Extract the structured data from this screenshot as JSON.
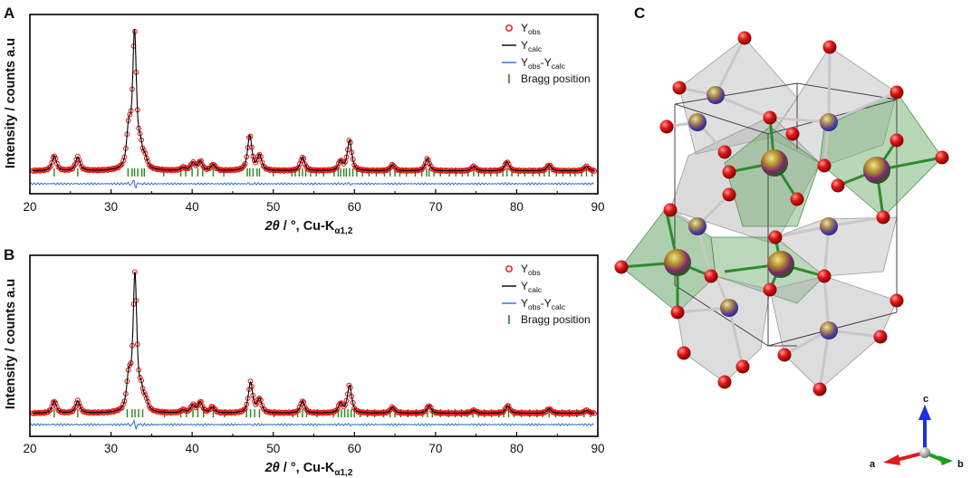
{
  "figure": {
    "panel_c_label": "C",
    "axes_triad": {
      "up": "c",
      "left": "a",
      "right": "b"
    }
  },
  "chart_data": [
    {
      "panel": "A",
      "type": "line",
      "title": "",
      "xlabel_symbol": "2θ",
      "xlabel_rest": " / °, Cu-K",
      "xlabel_sub": "α1,2",
      "ylabel": "Intensity / counts a.u",
      "xlim": [
        20,
        90
      ],
      "ylim": [
        -0.08,
        1.1
      ],
      "xticks": [
        20,
        30,
        40,
        50,
        60,
        70,
        80,
        90
      ],
      "yticks_labeled": false,
      "legend": [
        {
          "key": "obs",
          "main": "Y",
          "sub": "obs",
          "style": "open red circles"
        },
        {
          "key": "calc",
          "main": "Y",
          "sub": "calc",
          "style": "black line"
        },
        {
          "key": "diff",
          "main": "Y",
          "sub": "obs",
          "mid": "-Y",
          "sub2": "calc",
          "style": "blue line"
        },
        {
          "key": "bragg",
          "main": "Bragg position",
          "style": "green ticks"
        }
      ],
      "background": 0.07,
      "peaks": [
        {
          "x": 23.0,
          "h": 0.1
        },
        {
          "x": 25.9,
          "h": 0.09
        },
        {
          "x": 32.2,
          "h": 0.26
        },
        {
          "x": 32.9,
          "h": 0.88
        },
        {
          "x": 33.6,
          "h": 0.13
        },
        {
          "x": 34.2,
          "h": 0.06
        },
        {
          "x": 38.9,
          "h": 0.02
        },
        {
          "x": 40.1,
          "h": 0.05
        },
        {
          "x": 41.0,
          "h": 0.06
        },
        {
          "x": 42.6,
          "h": 0.04
        },
        {
          "x": 47.1,
          "h": 0.23
        },
        {
          "x": 48.3,
          "h": 0.1
        },
        {
          "x": 53.6,
          "h": 0.09
        },
        {
          "x": 58.3,
          "h": 0.06
        },
        {
          "x": 59.4,
          "h": 0.2
        },
        {
          "x": 64.7,
          "h": 0.04
        },
        {
          "x": 69.0,
          "h": 0.08
        },
        {
          "x": 74.7,
          "h": 0.03
        },
        {
          "x": 78.8,
          "h": 0.06
        },
        {
          "x": 84.0,
          "h": 0.04
        },
        {
          "x": 88.6,
          "h": 0.03
        }
      ],
      "bragg_positions": [
        23.0,
        25.9,
        32.1,
        32.6,
        32.9,
        33.3,
        33.8,
        34.1,
        36.5,
        38.6,
        39.2,
        40.0,
        40.7,
        41.3,
        42.6,
        43.9,
        46.8,
        47.1,
        47.5,
        48.0,
        48.3,
        50.0,
        52.3,
        52.7,
        53.2,
        53.6,
        54.0,
        54.6,
        55.3,
        56.2,
        57.5,
        58.0,
        58.3,
        58.7,
        59.0,
        59.4,
        59.8,
        60.3,
        61.0,
        61.8,
        62.7,
        63.7,
        64.4,
        65.0,
        65.6,
        66.4,
        67.5,
        68.3,
        68.9,
        69.2,
        69.8,
        70.6,
        71.7,
        72.5,
        73.3,
        74.0,
        74.7,
        75.3,
        76.0,
        76.8,
        77.6,
        78.3,
        78.8,
        79.4,
        80.2,
        81.0,
        82.0,
        82.8,
        83.4,
        84.0,
        84.9,
        85.7,
        86.6,
        87.2,
        88.0,
        88.6,
        89.3
      ]
    },
    {
      "panel": "B",
      "type": "line",
      "title": "",
      "xlabel_symbol": "2θ",
      "xlabel_rest": " / °, Cu-K",
      "xlabel_sub": "α1,2",
      "ylabel": "Intensity / counts a.u",
      "xlim": [
        20,
        90
      ],
      "ylim": [
        -0.08,
        1.1
      ],
      "xticks": [
        20,
        30,
        40,
        50,
        60,
        70,
        80,
        90
      ],
      "yticks_labeled": false,
      "legend": [
        {
          "key": "obs",
          "main": "Y",
          "sub": "obs",
          "style": "open red circles"
        },
        {
          "key": "calc",
          "main": "Y",
          "sub": "calc",
          "style": "black line"
        },
        {
          "key": "diff",
          "main": "Y",
          "sub": "obs",
          "mid": "-Y",
          "sub2": "calc",
          "style": "blue line"
        },
        {
          "key": "bragg",
          "main": "Bragg position",
          "style": "green ticks"
        }
      ],
      "background": 0.07,
      "peaks": [
        {
          "x": 23.0,
          "h": 0.08
        },
        {
          "x": 25.9,
          "h": 0.08
        },
        {
          "x": 32.2,
          "h": 0.22
        },
        {
          "x": 32.95,
          "h": 0.88
        },
        {
          "x": 33.7,
          "h": 0.12
        },
        {
          "x": 34.3,
          "h": 0.06
        },
        {
          "x": 38.9,
          "h": 0.02
        },
        {
          "x": 40.1,
          "h": 0.05
        },
        {
          "x": 41.0,
          "h": 0.07
        },
        {
          "x": 42.5,
          "h": 0.04
        },
        {
          "x": 47.2,
          "h": 0.2
        },
        {
          "x": 48.3,
          "h": 0.09
        },
        {
          "x": 53.6,
          "h": 0.08
        },
        {
          "x": 58.3,
          "h": 0.06
        },
        {
          "x": 59.4,
          "h": 0.18
        },
        {
          "x": 64.7,
          "h": 0.04
        },
        {
          "x": 69.2,
          "h": 0.05
        },
        {
          "x": 74.7,
          "h": 0.02
        },
        {
          "x": 78.9,
          "h": 0.05
        },
        {
          "x": 84.0,
          "h": 0.03
        },
        {
          "x": 88.6,
          "h": 0.02
        }
      ],
      "bragg_positions": [
        23.0,
        25.9,
        32.0,
        32.6,
        32.95,
        33.4,
        33.9,
        36.6,
        38.6,
        39.3,
        40.1,
        40.7,
        41.4,
        42.6,
        44.0,
        46.7,
        47.2,
        47.7,
        48.3,
        50.1,
        52.4,
        53.0,
        53.6,
        54.1,
        55.4,
        57.4,
        58.0,
        58.4,
        58.8,
        59.2,
        59.6,
        60.0,
        60.7,
        61.6,
        62.5,
        63.6,
        64.4,
        65.0,
        65.7,
        66.6,
        67.6,
        68.4,
        69.0,
        69.6,
        70.6,
        71.6,
        72.4,
        73.2,
        73.9,
        74.6,
        75.3,
        76.0,
        76.9,
        77.8,
        78.4,
        79.0,
        79.7,
        80.6,
        81.6,
        82.5,
        83.2,
        84.0,
        84.8,
        85.6,
        86.5,
        87.4,
        88.3,
        89.1
      ]
    }
  ]
}
